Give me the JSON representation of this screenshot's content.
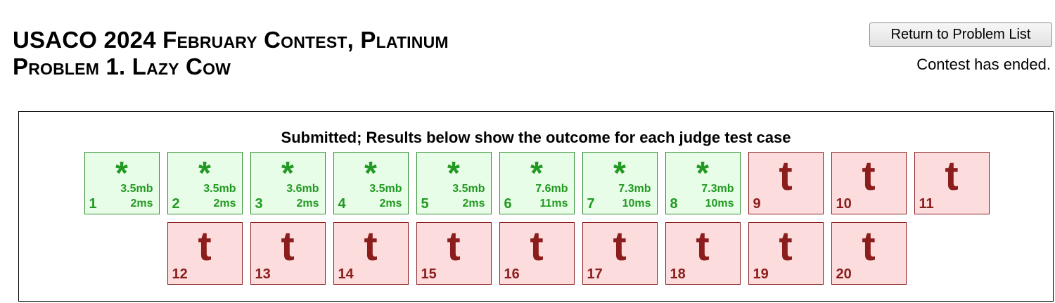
{
  "header": {
    "title_line1": "USACO 2024 February Contest, Platinum",
    "title_line2": "Problem 1. Lazy Cow",
    "return_button_label": "Return to Problem List",
    "contest_status": "Contest has ended."
  },
  "results": {
    "heading": "Submitted; Results below show the outcome for each judge test case",
    "cases": [
      {
        "num": "1",
        "status": "pass",
        "symbol": "*",
        "memory": "3.5mb",
        "time": "2ms"
      },
      {
        "num": "2",
        "status": "pass",
        "symbol": "*",
        "memory": "3.5mb",
        "time": "2ms"
      },
      {
        "num": "3",
        "status": "pass",
        "symbol": "*",
        "memory": "3.6mb",
        "time": "2ms"
      },
      {
        "num": "4",
        "status": "pass",
        "symbol": "*",
        "memory": "3.5mb",
        "time": "2ms"
      },
      {
        "num": "5",
        "status": "pass",
        "symbol": "*",
        "memory": "3.5mb",
        "time": "2ms"
      },
      {
        "num": "6",
        "status": "pass",
        "symbol": "*",
        "memory": "7.6mb",
        "time": "11ms"
      },
      {
        "num": "7",
        "status": "pass",
        "symbol": "*",
        "memory": "7.3mb",
        "time": "10ms"
      },
      {
        "num": "8",
        "status": "pass",
        "symbol": "*",
        "memory": "7.3mb",
        "time": "10ms"
      },
      {
        "num": "9",
        "status": "fail",
        "symbol": "t"
      },
      {
        "num": "10",
        "status": "fail",
        "symbol": "t"
      },
      {
        "num": "11",
        "status": "fail",
        "symbol": "t"
      },
      {
        "num": "12",
        "status": "fail",
        "symbol": "t"
      },
      {
        "num": "13",
        "status": "fail",
        "symbol": "t"
      },
      {
        "num": "14",
        "status": "fail",
        "symbol": "t"
      },
      {
        "num": "15",
        "status": "fail",
        "symbol": "t"
      },
      {
        "num": "16",
        "status": "fail",
        "symbol": "t"
      },
      {
        "num": "17",
        "status": "fail",
        "symbol": "t"
      },
      {
        "num": "18",
        "status": "fail",
        "symbol": "t"
      },
      {
        "num": "19",
        "status": "fail",
        "symbol": "t"
      },
      {
        "num": "20",
        "status": "fail",
        "symbol": "t"
      }
    ]
  },
  "colors": {
    "pass_bg": "#e8fde8",
    "pass_fg": "#229922",
    "fail_bg": "#fcdcdc",
    "fail_fg": "#8b1d1d"
  }
}
